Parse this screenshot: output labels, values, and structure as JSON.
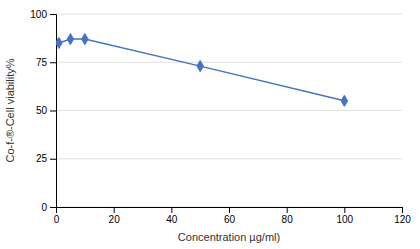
{
  "chart_data": {
    "type": "line",
    "xlabel": "Concentration µg/ml)",
    "ylabel": "Co-f-®-Cell viability%",
    "x": [
      1,
      5,
      10,
      50,
      100
    ],
    "values": [
      85,
      87,
      87,
      73,
      55
    ],
    "color": "#4472C4",
    "marker": "diamond",
    "xlim": [
      0,
      120
    ],
    "ylim": [
      0,
      100
    ],
    "xticks": [
      0,
      20,
      40,
      60,
      80,
      100,
      120
    ],
    "yticks": [
      0,
      25,
      50,
      75,
      100
    ],
    "grid": true
  }
}
